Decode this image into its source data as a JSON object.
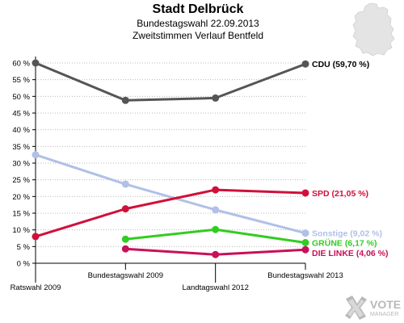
{
  "chart_data": {
    "type": "line",
    "title": "Stadt Delbrück",
    "subtitle_lines": [
      "Bundestagswahl 22.09.2013",
      "Zweitstimmen Verlauf Bentfeld"
    ],
    "x_categories": [
      "Ratswahl 2009",
      "Bundestagswahl 2009",
      "Landtagswahl 2012",
      "Bundestagswahl 2013"
    ],
    "yticks": [
      "0 %",
      "5 %",
      "10 %",
      "15 %",
      "20 %",
      "25 %",
      "30 %",
      "35 %",
      "40 %",
      "45 %",
      "50 %",
      "55 %",
      "60 %"
    ],
    "ylim": [
      0,
      62
    ],
    "grid": "horizontal dotted",
    "series": [
      {
        "name": "CDU",
        "end_label": "CDU (59,70 %)",
        "color": "#555555",
        "label_color": "#000000",
        "values": [
          60.0,
          48.8,
          49.5,
          59.7
        ]
      },
      {
        "name": "Sonstige",
        "end_label": "Sonstige (9,02 %)",
        "color": "#b0c0e8",
        "label_color": "#b0c0e8",
        "values": [
          32.5,
          23.7,
          16.0,
          9.02
        ]
      },
      {
        "name": "SPD",
        "end_label": "SPD (21,05 %)",
        "color": "#d0103a",
        "label_color": "#d0103a",
        "values": [
          8.0,
          16.3,
          22.0,
          21.05
        ]
      },
      {
        "name": "GRÜNE",
        "end_label": "GRÜNE (6,17 %)",
        "color": "#33cc22",
        "label_color": "#33cc22",
        "values": [
          null,
          7.2,
          10.1,
          6.17
        ]
      },
      {
        "name": "DIE LINKE",
        "end_label": "DIE LINKE (4,06 %)",
        "color": "#c8105a",
        "label_color": "#c8105a",
        "values": [
          null,
          4.3,
          2.6,
          4.06
        ]
      }
    ]
  },
  "logo": {
    "line1": "VOTE",
    "line2": "MANAGER",
    "icon": "ballot-cross-icon"
  },
  "map": {
    "icon": "germany-map-icon",
    "fill": "#e4e4e4"
  }
}
